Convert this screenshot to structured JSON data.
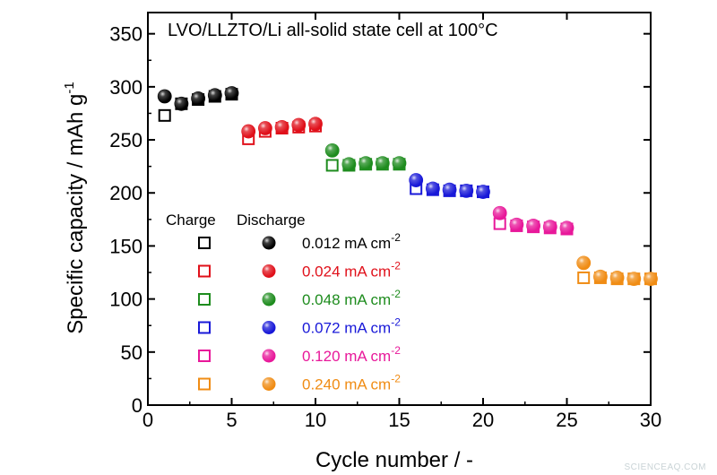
{
  "chart_data": {
    "type": "scatter",
    "title": "",
    "annotation": "LVO/LLZTO/Li all-solid state cell at 100°C",
    "xlabel": "Cycle number / -",
    "ylabel_main": "Specific capacity / mAh g",
    "ylabel_sup": "-1",
    "xlim": [
      0,
      30
    ],
    "ylim": [
      0,
      370
    ],
    "xticks": [
      0,
      5,
      10,
      15,
      20,
      25,
      30
    ],
    "yticks": [
      0,
      50,
      100,
      150,
      200,
      250,
      300,
      350
    ],
    "grid": false,
    "legend_header": {
      "charge": "Charge",
      "discharge": "Discharge"
    },
    "legend_placement": "lower-left",
    "series": [
      {
        "name": "0.012 mA cm",
        "sup": "-2",
        "color": "#000000",
        "x": [
          1,
          2,
          3,
          4,
          5
        ],
        "charge": [
          273,
          284,
          288,
          291,
          293
        ],
        "discharge": [
          291,
          284,
          289,
          292,
          294
        ]
      },
      {
        "name": "0.024 mA cm",
        "sup": "-2",
        "color": "#e0101a",
        "x": [
          6,
          7,
          8,
          9,
          10
        ],
        "charge": [
          251,
          258,
          261,
          262,
          263
        ],
        "discharge": [
          258,
          261,
          262,
          264,
          265
        ]
      },
      {
        "name": "0.048 mA cm",
        "sup": "-2",
        "color": "#1e8c1e",
        "x": [
          11,
          12,
          13,
          14,
          15
        ],
        "charge": [
          226,
          226,
          227,
          227,
          227
        ],
        "discharge": [
          240,
          227,
          228,
          228,
          228
        ]
      },
      {
        "name": "0.072 mA cm",
        "sup": "-2",
        "color": "#1818d8",
        "x": [
          16,
          17,
          18,
          19,
          20
        ],
        "charge": [
          204,
          203,
          202,
          202,
          201
        ],
        "discharge": [
          212,
          204,
          203,
          202,
          201
        ]
      },
      {
        "name": "0.120 mA cm",
        "sup": "-2",
        "color": "#e8189a",
        "x": [
          21,
          22,
          23,
          24,
          25
        ],
        "charge": [
          171,
          169,
          168,
          167,
          166
        ],
        "discharge": [
          181,
          170,
          169,
          168,
          167
        ]
      },
      {
        "name": "0.240 mA cm",
        "sup": "-2",
        "color": "#f08c14",
        "x": [
          26,
          27,
          28,
          29,
          30
        ],
        "charge": [
          120,
          120,
          119,
          119,
          119
        ],
        "discharge": [
          134,
          121,
          120,
          119,
          119
        ]
      }
    ]
  },
  "watermark": "SCIENCEAQ.COM"
}
